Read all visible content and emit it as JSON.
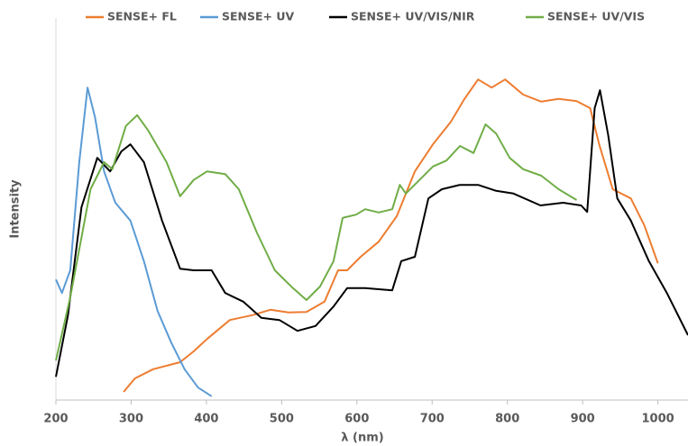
{
  "chart_data": {
    "type": "line",
    "x_label": "λ (nm)",
    "y_label": "Intensity",
    "xlim": [
      200,
      1040
    ],
    "xticks": [
      200,
      300,
      400,
      500,
      600,
      700,
      800,
      900,
      1000
    ],
    "ylim": [
      0,
      7
    ],
    "grid": false,
    "legend": "top",
    "series": [
      {
        "name": "SENSE+ FL",
        "color": "#ed7d31",
        "x": [
          290,
          305,
          329,
          365,
          383,
          401,
          431,
          461,
          485,
          509,
          533,
          557,
          575,
          587,
          605,
          629,
          653,
          677,
          701,
          725,
          743,
          761,
          779,
          797,
          821,
          845,
          868,
          892,
          910,
          922,
          940,
          964,
          982,
          1000
        ],
        "values": [
          0.15,
          0.4,
          0.57,
          0.7,
          0.9,
          1.13,
          1.48,
          1.57,
          1.67,
          1.62,
          1.63,
          1.82,
          2.4,
          2.4,
          2.65,
          2.93,
          3.4,
          4.23,
          4.73,
          5.15,
          5.57,
          5.93,
          5.78,
          5.93,
          5.65,
          5.52,
          5.57,
          5.53,
          5.4,
          4.73,
          3.9,
          3.73,
          3.23,
          2.53
        ]
      },
      {
        "name": "SENSE+ UV",
        "color": "#5b9bd5",
        "x": [
          200,
          208,
          219,
          231,
          242,
          252,
          264,
          279,
          299,
          317,
          335,
          353,
          371,
          389,
          407
        ],
        "values": [
          2.23,
          1.98,
          2.4,
          4.4,
          5.78,
          5.23,
          4.23,
          3.65,
          3.32,
          2.57,
          1.65,
          1.07,
          0.57,
          0.23,
          0.07
        ]
      },
      {
        "name": "SENSE+ UV/VIS/NIR",
        "color": "#000000",
        "x": [
          200,
          216,
          234,
          255,
          272,
          287,
          299,
          317,
          341,
          365,
          383,
          407,
          425,
          449,
          473,
          497,
          521,
          545,
          569,
          587,
          611,
          647,
          659,
          677,
          695,
          713,
          737,
          761,
          785,
          808,
          844,
          874,
          898,
          906,
          916,
          923,
          934,
          946,
          964,
          988,
          1012,
          1040
        ],
        "values": [
          0.43,
          1.57,
          3.57,
          4.48,
          4.23,
          4.6,
          4.73,
          4.4,
          3.32,
          2.43,
          2.4,
          2.4,
          1.98,
          1.82,
          1.52,
          1.48,
          1.28,
          1.37,
          1.73,
          2.07,
          2.07,
          2.03,
          2.57,
          2.65,
          3.73,
          3.9,
          3.98,
          3.98,
          3.87,
          3.82,
          3.6,
          3.65,
          3.6,
          3.48,
          5.4,
          5.73,
          4.9,
          3.73,
          3.32,
          2.57,
          1.98,
          1.2
        ]
      },
      {
        "name": "SENSE+ UV/VIS",
        "color": "#70ad47",
        "x": [
          200,
          219,
          246,
          264,
          275,
          293,
          308,
          323,
          347,
          365,
          383,
          401,
          425,
          443,
          467,
          491,
          515,
          533,
          551,
          569,
          581,
          599,
          611,
          629,
          647,
          657,
          665,
          683,
          701,
          719,
          737,
          755,
          771,
          785,
          803,
          821,
          845,
          868,
          892
        ],
        "values": [
          0.73,
          1.9,
          3.9,
          4.4,
          4.27,
          5.07,
          5.27,
          4.98,
          4.4,
          3.77,
          4.07,
          4.23,
          4.18,
          3.9,
          3.1,
          2.4,
          2.07,
          1.85,
          2.1,
          2.57,
          3.37,
          3.43,
          3.53,
          3.47,
          3.53,
          3.98,
          3.82,
          4.07,
          4.32,
          4.43,
          4.7,
          4.57,
          5.1,
          4.93,
          4.48,
          4.27,
          4.15,
          3.9,
          3.7
        ]
      }
    ]
  }
}
